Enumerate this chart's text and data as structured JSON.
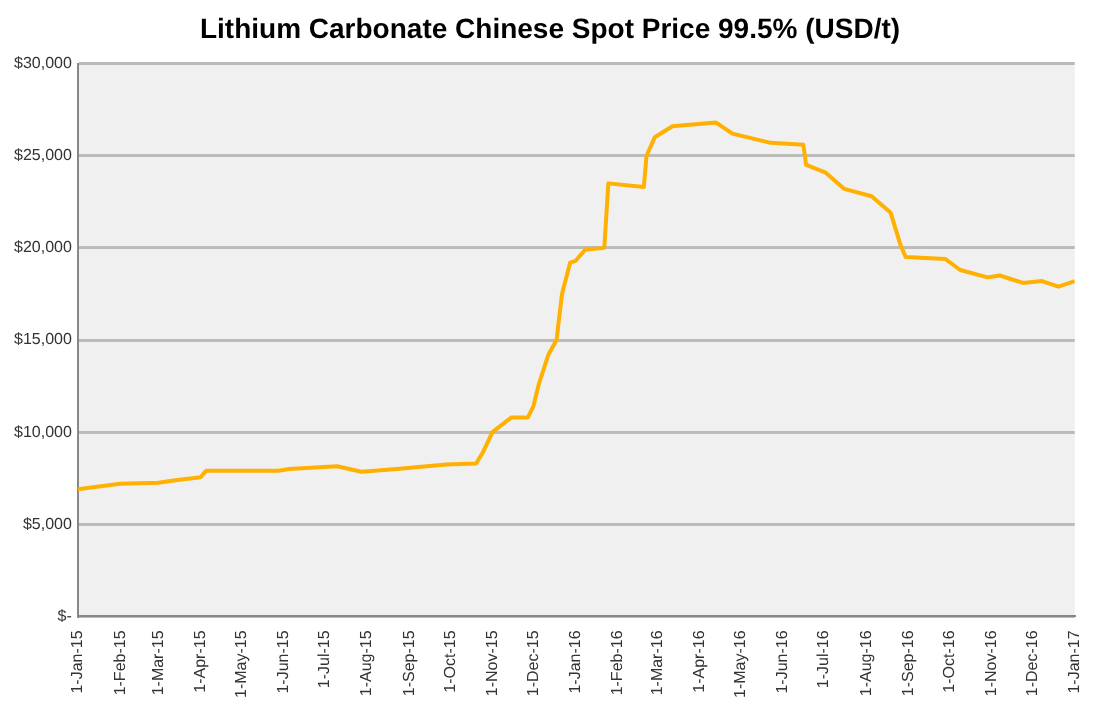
{
  "chart_data": {
    "type": "line",
    "title": "Lithium Carbonate Chinese Spot Price 99.5% (USD/t)",
    "x": [
      "2015-01-01",
      "2015-02-01",
      "2015-03-01",
      "2015-03-15",
      "2015-04-01",
      "2015-04-05",
      "2015-05-28",
      "2015-06-05",
      "2015-07-10",
      "2015-07-28",
      "2015-08-23",
      "2015-09-28",
      "2015-10-20",
      "2015-10-25",
      "2015-11-01",
      "2015-11-15",
      "2015-11-27",
      "2015-12-01",
      "2015-12-05",
      "2015-12-12",
      "2015-12-18",
      "2015-12-22",
      "2015-12-28",
      "2016-01-01",
      "2016-01-08",
      "2016-01-22",
      "2016-01-25",
      "2016-02-20",
      "2016-02-22",
      "2016-02-28",
      "2016-03-12",
      "2016-04-13",
      "2016-04-25",
      "2016-05-23",
      "2016-06-16",
      "2016-06-18",
      "2016-07-02",
      "2016-07-16",
      "2016-08-05",
      "2016-08-19",
      "2016-08-26",
      "2016-08-30",
      "2016-09-28",
      "2016-10-09",
      "2016-10-29",
      "2016-11-07",
      "2016-11-24",
      "2016-12-08",
      "2016-12-20",
      "2017-01-01"
    ],
    "series": [
      {
        "color": "#ffb000",
        "values": [
          6900,
          7200,
          7250,
          7400,
          7550,
          7900,
          7900,
          8000,
          8150,
          7850,
          8000,
          8250,
          8300,
          8900,
          10000,
          10800,
          10800,
          11400,
          12600,
          14200,
          15000,
          17500,
          19200,
          19300,
          19900,
          20000,
          23500,
          23300,
          25000,
          26000,
          26600,
          26800,
          26200,
          25700,
          25600,
          24500,
          24100,
          23200,
          22800,
          21900,
          20200,
          19500,
          19400,
          18800,
          18400,
          18500,
          18100,
          18200,
          17900,
          18200
        ]
      }
    ],
    "xlim": [
      "2015-01-01",
      "2017-01-01"
    ],
    "xticks": [
      {
        "value": "2015-01-01",
        "label": "1-Jan-15"
      },
      {
        "value": "2015-02-01",
        "label": "1-Feb-15"
      },
      {
        "value": "2015-03-01",
        "label": "1-Mar-15"
      },
      {
        "value": "2015-04-01",
        "label": "1-Apr-15"
      },
      {
        "value": "2015-05-01",
        "label": "1-May-15"
      },
      {
        "value": "2015-06-01",
        "label": "1-Jun-15"
      },
      {
        "value": "2015-07-01",
        "label": "1-Jul-15"
      },
      {
        "value": "2015-08-01",
        "label": "1-Aug-15"
      },
      {
        "value": "2015-09-01",
        "label": "1-Sep-15"
      },
      {
        "value": "2015-10-01",
        "label": "1-Oct-15"
      },
      {
        "value": "2015-11-01",
        "label": "1-Nov-15"
      },
      {
        "value": "2015-12-01",
        "label": "1-Dec-15"
      },
      {
        "value": "2016-01-01",
        "label": "1-Jan-16"
      },
      {
        "value": "2016-02-01",
        "label": "1-Feb-16"
      },
      {
        "value": "2016-03-01",
        "label": "1-Mar-16"
      },
      {
        "value": "2016-04-01",
        "label": "1-Apr-16"
      },
      {
        "value": "2016-05-01",
        "label": "1-May-16"
      },
      {
        "value": "2016-06-01",
        "label": "1-Jun-16"
      },
      {
        "value": "2016-07-01",
        "label": "1-Jul-16"
      },
      {
        "value": "2016-08-01",
        "label": "1-Aug-16"
      },
      {
        "value": "2016-09-01",
        "label": "1-Sep-16"
      },
      {
        "value": "2016-10-01",
        "label": "1-Oct-16"
      },
      {
        "value": "2016-11-01",
        "label": "1-Nov-16"
      },
      {
        "value": "2016-12-01",
        "label": "1-Dec-16"
      },
      {
        "value": "2017-01-01",
        "label": "1-Jan-17"
      }
    ],
    "ylim": [
      0,
      30000
    ],
    "yticks": [
      {
        "value": 0,
        "label": "$-"
      },
      {
        "value": 5000,
        "label": "$5,000"
      },
      {
        "value": 10000,
        "label": "$10,000"
      },
      {
        "value": 15000,
        "label": "$15,000"
      },
      {
        "value": 20000,
        "label": "$20,000"
      },
      {
        "value": 25000,
        "label": "$25,000"
      },
      {
        "value": 30000,
        "label": "$30,000"
      }
    ],
    "grid": "y",
    "legend": false,
    "marker": "none",
    "line_style": "solid"
  }
}
